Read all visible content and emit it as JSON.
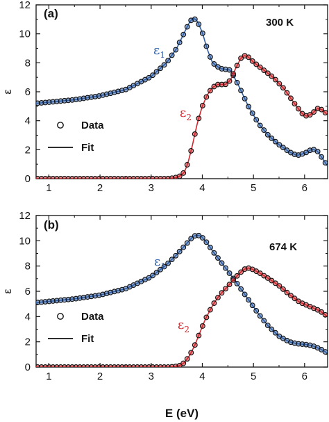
{
  "colors": {
    "eps1": "#2f5fa8",
    "eps2": "#d0282e",
    "marker_edge": "#111111",
    "axis": "#111111",
    "fit_legend": "#111111"
  },
  "shared": {
    "x_title": "E (eV)",
    "y_title": "ε",
    "legend_data": "Data",
    "legend_fit": "Fit",
    "eps1_symbol": "ε",
    "eps1_sub": "1",
    "eps2_symbol": "ε",
    "eps2_sub": "2"
  },
  "chart_data": [
    {
      "type": "line",
      "panel_label": "(a)",
      "annotation": "300 K",
      "xlim": [
        0.75,
        6.45
      ],
      "ylim": [
        0,
        12
      ],
      "x_ticks": [
        1,
        2,
        3,
        4,
        5,
        6
      ],
      "y_ticks": [
        0,
        2,
        4,
        6,
        8,
        10,
        12
      ],
      "legend": [
        "Data",
        "Fit"
      ],
      "grid": false,
      "series": [
        {
          "name": "ε1",
          "keypoints": [
            [
              0.75,
              5.2
            ],
            [
              1.0,
              5.28
            ],
            [
              1.5,
              5.45
            ],
            [
              2.0,
              5.72
            ],
            [
              2.5,
              6.15
            ],
            [
              3.0,
              7.05
            ],
            [
              3.3,
              8.0
            ],
            [
              3.5,
              9.0
            ],
            [
              3.65,
              10.1
            ],
            [
              3.75,
              10.8
            ],
            [
              3.82,
              11.1
            ],
            [
              3.9,
              10.9
            ],
            [
              4.0,
              10.1
            ],
            [
              4.1,
              8.9
            ],
            [
              4.2,
              8.0
            ],
            [
              4.35,
              7.6
            ],
            [
              4.55,
              7.5
            ],
            [
              4.7,
              6.5
            ],
            [
              4.9,
              5.0
            ],
            [
              5.1,
              3.8
            ],
            [
              5.3,
              2.95
            ],
            [
              5.5,
              2.35
            ],
            [
              5.7,
              1.85
            ],
            [
              5.85,
              1.6
            ],
            [
              6.0,
              1.75
            ],
            [
              6.15,
              2.05
            ],
            [
              6.25,
              1.9
            ],
            [
              6.35,
              1.4
            ],
            [
              6.45,
              0.85
            ]
          ]
        },
        {
          "name": "ε2",
          "keypoints": [
            [
              0.75,
              0.0
            ],
            [
              3.3,
              0.0
            ],
            [
              3.45,
              0.05
            ],
            [
              3.55,
              0.15
            ],
            [
              3.65,
              0.45
            ],
            [
              3.72,
              1.1
            ],
            [
              3.8,
              2.2
            ],
            [
              3.9,
              3.8
            ],
            [
              4.0,
              5.0
            ],
            [
              4.1,
              5.8
            ],
            [
              4.2,
              6.3
            ],
            [
              4.3,
              6.5
            ],
            [
              4.45,
              6.5
            ],
            [
              4.55,
              6.8
            ],
            [
              4.65,
              7.6
            ],
            [
              4.75,
              8.3
            ],
            [
              4.82,
              8.5
            ],
            [
              4.9,
              8.4
            ],
            [
              5.0,
              8.05
            ],
            [
              5.2,
              7.5
            ],
            [
              5.4,
              6.95
            ],
            [
              5.6,
              6.2
            ],
            [
              5.8,
              5.2
            ],
            [
              5.95,
              4.5
            ],
            [
              6.05,
              4.3
            ],
            [
              6.15,
              4.5
            ],
            [
              6.25,
              4.85
            ],
            [
              6.35,
              4.75
            ],
            [
              6.45,
              4.4
            ]
          ]
        }
      ]
    },
    {
      "type": "line",
      "panel_label": "(b)",
      "annotation": "674 K",
      "xlabel": "E (eV)",
      "xlim": [
        0.75,
        6.45
      ],
      "ylim": [
        0,
        12
      ],
      "x_ticks": [
        1,
        2,
        3,
        4,
        5,
        6
      ],
      "y_ticks": [
        0,
        2,
        4,
        6,
        8,
        10,
        12
      ],
      "legend": [
        "Data",
        "Fit"
      ],
      "grid": false,
      "series": [
        {
          "name": "ε1",
          "keypoints": [
            [
              0.75,
              5.1
            ],
            [
              1.0,
              5.2
            ],
            [
              1.5,
              5.4
            ],
            [
              2.0,
              5.7
            ],
            [
              2.5,
              6.2
            ],
            [
              3.0,
              7.15
            ],
            [
              3.3,
              8.1
            ],
            [
              3.5,
              8.9
            ],
            [
              3.7,
              9.8
            ],
            [
              3.82,
              10.35
            ],
            [
              3.9,
              10.45
            ],
            [
              3.98,
              10.35
            ],
            [
              4.1,
              9.8
            ],
            [
              4.2,
              9.2
            ],
            [
              4.35,
              8.4
            ],
            [
              4.5,
              7.6
            ],
            [
              4.7,
              6.5
            ],
            [
              4.9,
              5.35
            ],
            [
              5.1,
              4.2
            ],
            [
              5.3,
              3.2
            ],
            [
              5.5,
              2.45
            ],
            [
              5.7,
              2.0
            ],
            [
              5.85,
              1.85
            ],
            [
              6.0,
              1.8
            ],
            [
              6.15,
              1.7
            ],
            [
              6.3,
              1.45
            ],
            [
              6.45,
              1.1
            ]
          ]
        },
        {
          "name": "ε2",
          "keypoints": [
            [
              0.75,
              0.0
            ],
            [
              3.3,
              0.0
            ],
            [
              3.45,
              0.03
            ],
            [
              3.55,
              0.1
            ],
            [
              3.65,
              0.35
            ],
            [
              3.75,
              0.9
            ],
            [
              3.85,
              1.7
            ],
            [
              3.95,
              2.7
            ],
            [
              4.05,
              3.7
            ],
            [
              4.15,
              4.5
            ],
            [
              4.25,
              5.2
            ],
            [
              4.35,
              5.75
            ],
            [
              4.5,
              6.4
            ],
            [
              4.65,
              7.1
            ],
            [
              4.8,
              7.7
            ],
            [
              4.88,
              7.85
            ],
            [
              4.95,
              7.8
            ],
            [
              5.1,
              7.5
            ],
            [
              5.3,
              7.0
            ],
            [
              5.5,
              6.45
            ],
            [
              5.7,
              5.75
            ],
            [
              5.9,
              5.15
            ],
            [
              6.1,
              4.8
            ],
            [
              6.3,
              4.45
            ],
            [
              6.45,
              4.0
            ]
          ]
        }
      ]
    }
  ]
}
